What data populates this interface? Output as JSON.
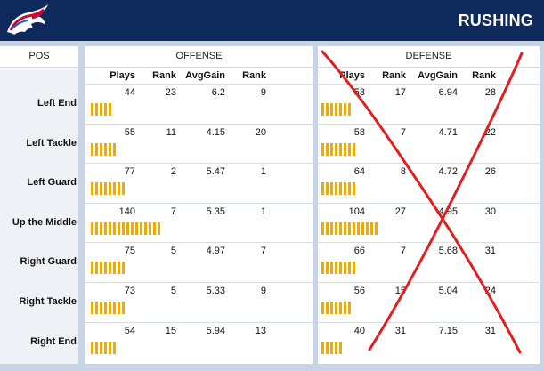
{
  "header": {
    "title": "RUSHING",
    "logo_icon": "buffalo-logo-icon",
    "bg_color": "#0e2a5c"
  },
  "table": {
    "pos_header": "POS",
    "offense_header": "OFFENSE",
    "defense_header": "DEFENSE",
    "columns": [
      "Plays",
      "Rank",
      "AvgGain",
      "Rank"
    ],
    "bar_color": "#f2a900",
    "rows": [
      {
        "pos": "Left End",
        "off": [
          "44",
          "23",
          "6.2",
          "9"
        ],
        "off_bar": 5,
        "def": [
          "53",
          "17",
          "6.94",
          "28"
        ],
        "def_bar": 7
      },
      {
        "pos": "Left Tackle",
        "off": [
          "55",
          "11",
          "4.15",
          "20"
        ],
        "off_bar": 6,
        "def": [
          "58",
          "7",
          "4.71",
          "22"
        ],
        "def_bar": 8
      },
      {
        "pos": "Left Guard",
        "off": [
          "77",
          "2",
          "5.47",
          "1"
        ],
        "off_bar": 8,
        "def": [
          "64",
          "8",
          "4.72",
          "26"
        ],
        "def_bar": 8
      },
      {
        "pos": "Up the Middle",
        "off": [
          "140",
          "7",
          "5.35",
          "1"
        ],
        "off_bar": 16,
        "def": [
          "104",
          "27",
          "4.95",
          "30"
        ],
        "def_bar": 13
      },
      {
        "pos": "Right Guard",
        "off": [
          "75",
          "5",
          "4.97",
          "7"
        ],
        "off_bar": 8,
        "def": [
          "66",
          "7",
          "5.68",
          "31"
        ],
        "def_bar": 8
      },
      {
        "pos": "Right Tackle",
        "off": [
          "73",
          "5",
          "5.33",
          "9"
        ],
        "off_bar": 8,
        "def": [
          "56",
          "15",
          "5.04",
          "24"
        ],
        "def_bar": 7
      },
      {
        "pos": "Right End",
        "off": [
          "54",
          "15",
          "5.94",
          "13"
        ],
        "off_bar": 6,
        "def": [
          "40",
          "31",
          "7.15",
          "31"
        ],
        "def_bar": 5
      }
    ]
  },
  "annotation": {
    "type": "red-x-over-defense",
    "color": "#e02020"
  }
}
